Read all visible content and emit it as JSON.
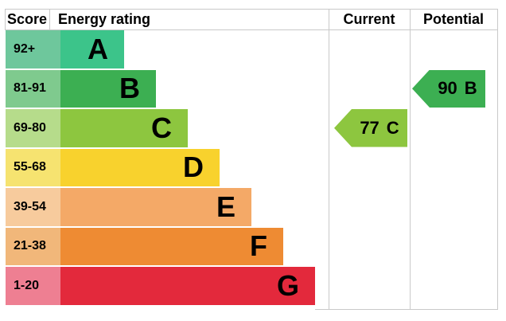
{
  "header": {
    "score": "Score",
    "energy_rating": "Energy rating",
    "current": "Current",
    "potential": "Potential"
  },
  "bands": [
    {
      "letter": "A",
      "score_range": "92+",
      "color": "#3cc48a",
      "tint": "#6ec79c"
    },
    {
      "letter": "B",
      "score_range": "81-91",
      "color": "#3caf52",
      "tint": "#7fca8e"
    },
    {
      "letter": "C",
      "score_range": "69-80",
      "color": "#8dc63f",
      "tint": "#b6dc8b"
    },
    {
      "letter": "D",
      "score_range": "55-68",
      "color": "#f8d22d",
      "tint": "#f6e370"
    },
    {
      "letter": "E",
      "score_range": "39-54",
      "color": "#f4a967",
      "tint": "#f7cb9d"
    },
    {
      "letter": "F",
      "score_range": "21-38",
      "color": "#ee8b33",
      "tint": "#f1b77a"
    },
    {
      "letter": "G",
      "score_range": "1-20",
      "color": "#e3293c",
      "tint": "#ee7f92"
    }
  ],
  "current": {
    "score": "77",
    "band": "C"
  },
  "potential": {
    "score": "90",
    "band": "B"
  },
  "chart_data": {
    "type": "bar",
    "title": "EPC energy efficiency rating chart",
    "columns": [
      "Score",
      "Energy rating",
      "Current",
      "Potential"
    ],
    "categories": [
      "A",
      "B",
      "C",
      "D",
      "E",
      "F",
      "G"
    ],
    "score_ranges": [
      "92+",
      "81-91",
      "69-80",
      "55-68",
      "39-54",
      "21-38",
      "1-20"
    ],
    "band_colors": [
      "#3cc48a",
      "#3caf52",
      "#8dc63f",
      "#f8d22d",
      "#f4a967",
      "#ee8b33",
      "#e3293c"
    ],
    "bar_relative_lengths": [
      1,
      2,
      3,
      4,
      5,
      6,
      7
    ],
    "current": {
      "value": 77,
      "band": "C"
    },
    "potential": {
      "value": 90,
      "band": "B"
    },
    "legend_position": "none",
    "grid": "off"
  }
}
